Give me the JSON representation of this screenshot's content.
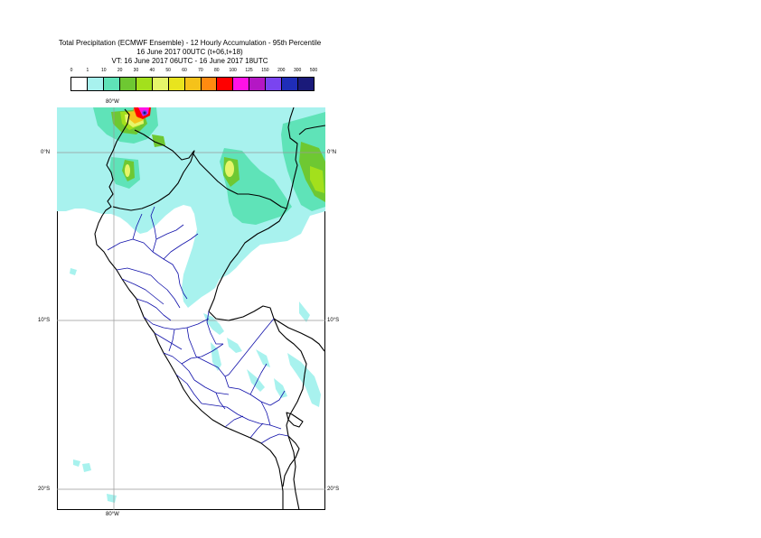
{
  "title": {
    "line1": "Total Precipitation (ECMWF Ensemble) - 12 Hourly Accumulation - 95th Percentile",
    "line2": "16 June 2017 00UTC (t+06,t+18)",
    "line3": "VT: 16 June 2017 06UTC - 16 June 2017 18UTC"
  },
  "legend": {
    "labels": [
      "0",
      "1",
      "10",
      "20",
      "30",
      "40",
      "50",
      "60",
      "70",
      "80",
      "100",
      "125",
      "150",
      "200",
      "300",
      "500"
    ],
    "colors": [
      "#ffffff",
      "#a8f2ee",
      "#5fe3b8",
      "#6ec832",
      "#a3e01c",
      "#e6f56a",
      "#e8e41e",
      "#f5c21a",
      "#ff8a10",
      "#ff0000",
      "#ff12e6",
      "#b417c4",
      "#7a44f0",
      "#1f2db8",
      "#1a1a7a"
    ]
  },
  "map": {
    "lat_labels": [
      "0°N",
      "10°S",
      "20°S"
    ],
    "lon_labels": [
      "80°W",
      "80°W"
    ]
  }
}
